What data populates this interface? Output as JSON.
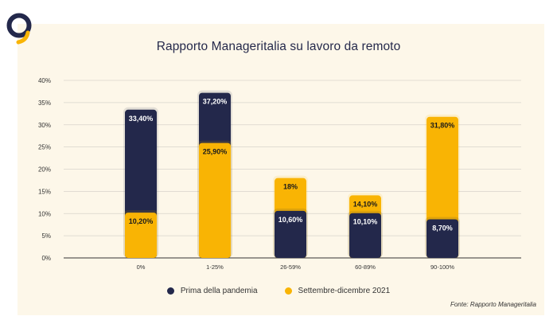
{
  "colors": {
    "prima": "#23284b",
    "settembre": "#f9b404",
    "logo_ring": "#23284b",
    "logo_accent": "#f9b404"
  },
  "logo": {
    "icon": "ring-logo-icon"
  },
  "source_note": "Fonte: Rapporto Manageritalia",
  "chart_data": {
    "type": "bar",
    "title": "Rapporto Manageritalia su lavoro da remoto",
    "xlabel": "",
    "ylabel": "",
    "categories": [
      "0%",
      "1-25%",
      "26-59%",
      "60-89%",
      "90-100%"
    ],
    "series": [
      {
        "name": "Prima della pandemia",
        "values": [
          33.4,
          37.2,
          10.6,
          10.1,
          8.7
        ],
        "labels": [
          "33,40%",
          "37,20%",
          "10,60%",
          "10,10%",
          "8,70%"
        ]
      },
      {
        "name": "Settembre-dicembre 2021",
        "values": [
          10.2,
          25.9,
          18,
          14.1,
          31.8
        ],
        "labels": [
          "10,20%",
          "25,90%",
          "18%",
          "14,10%",
          "31,80%"
        ]
      }
    ],
    "ylim": [
      0,
      40
    ],
    "yticks": [
      0,
      5,
      10,
      15,
      20,
      25,
      30,
      35,
      40
    ],
    "ytick_labels": [
      "0%",
      "5%",
      "10%",
      "15%",
      "20%",
      "25%",
      "30%",
      "35%",
      "40%"
    ],
    "grid": true,
    "legend": "bottom-center",
    "overlapped": true
  }
}
